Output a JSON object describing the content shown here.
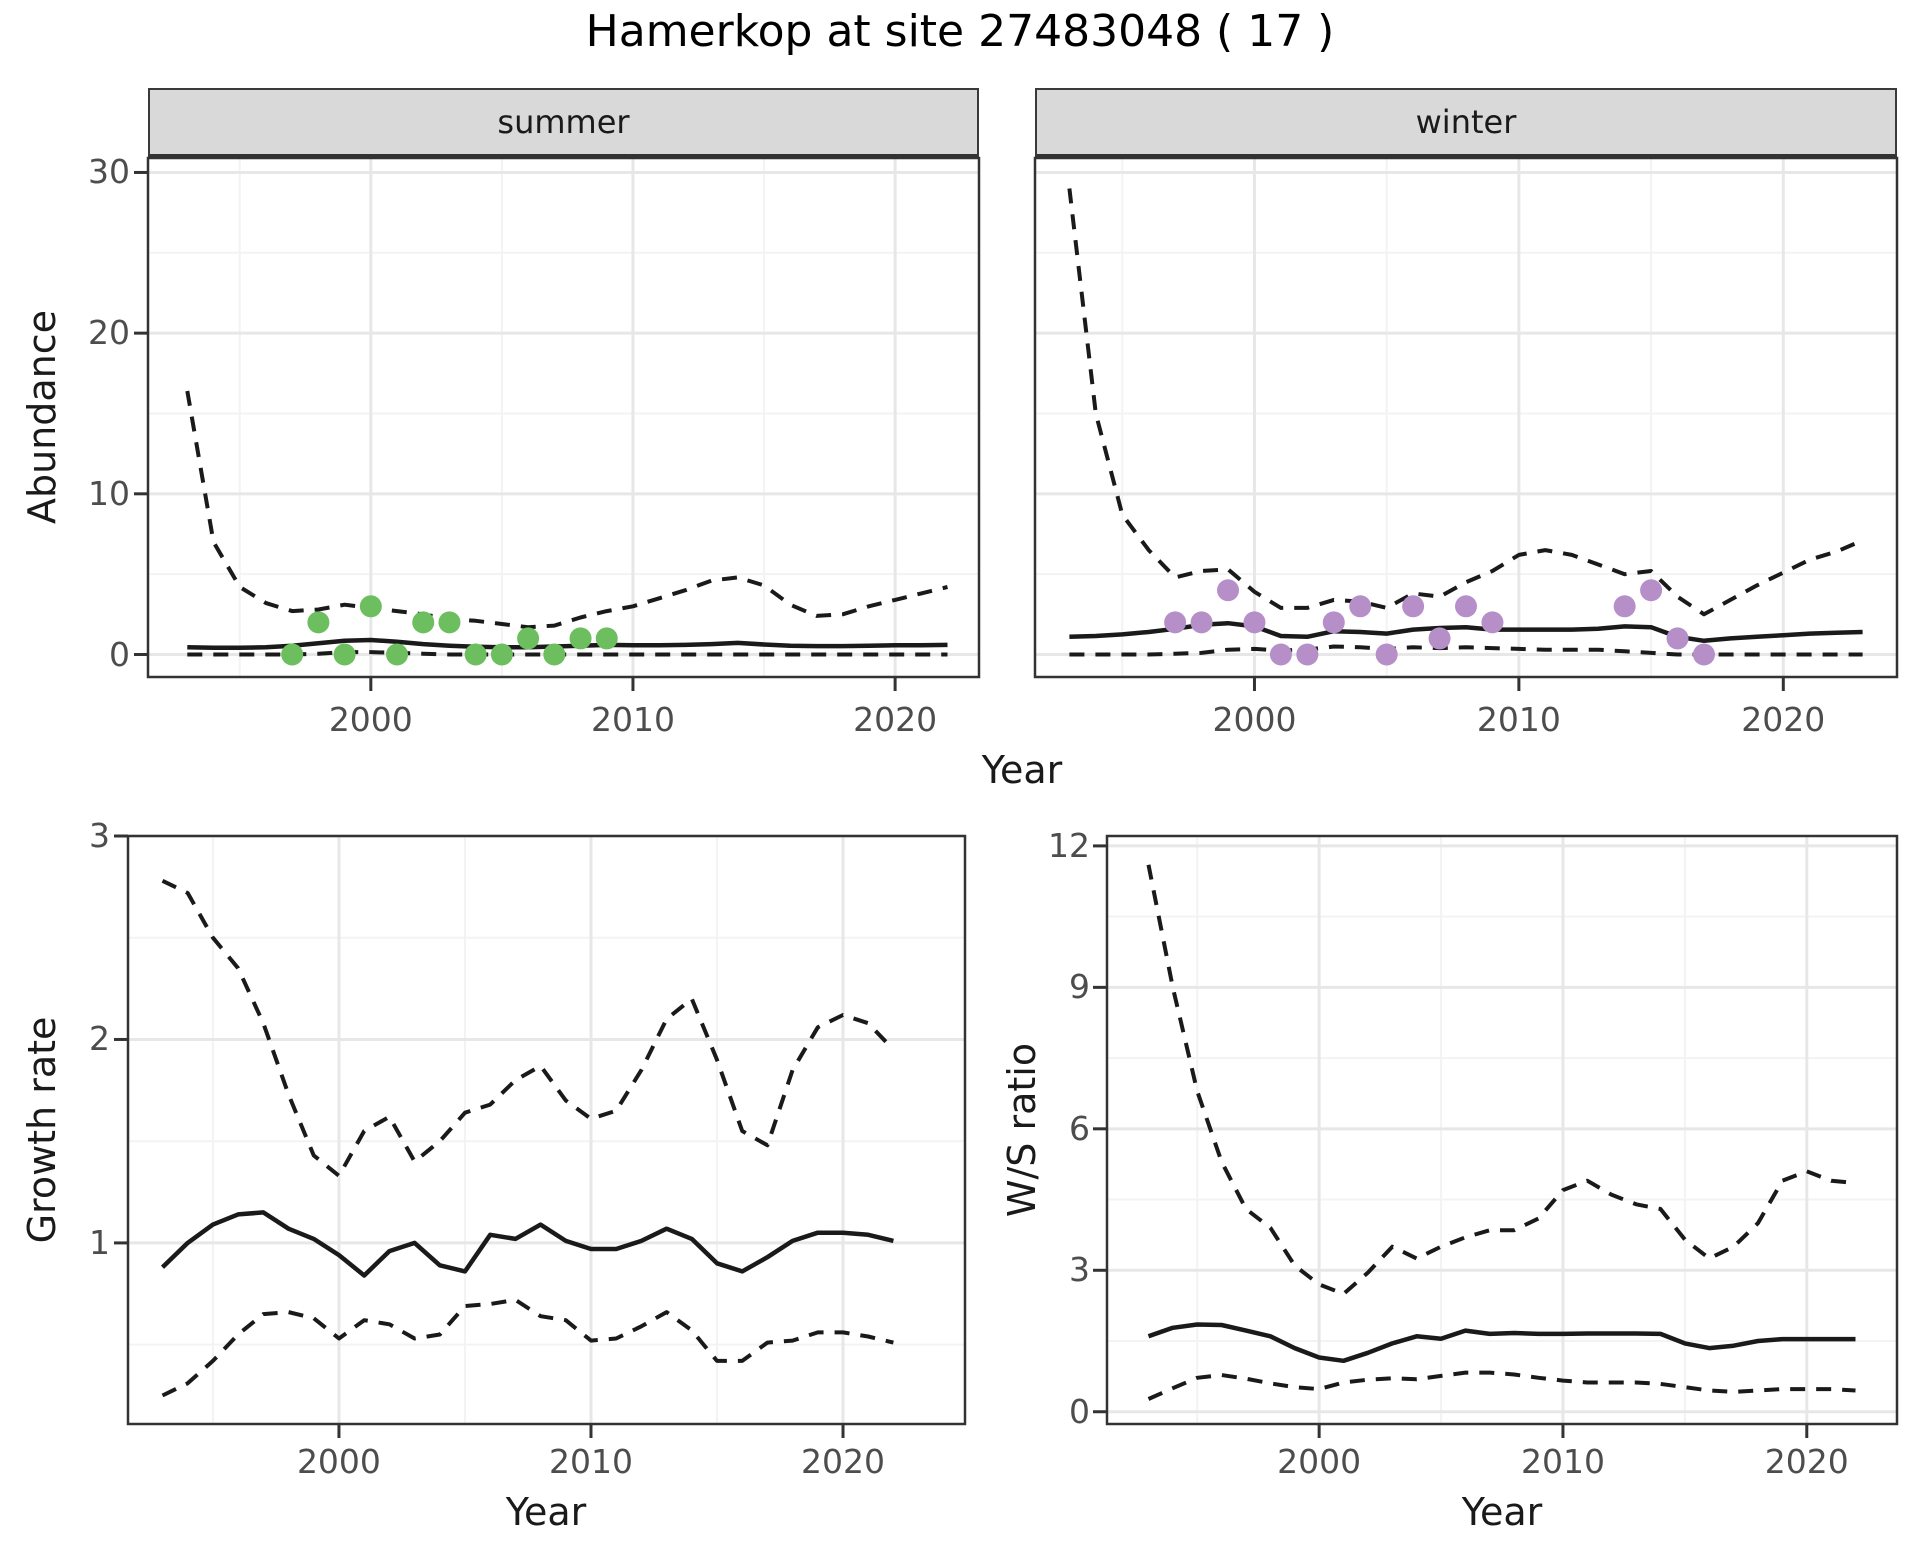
{
  "title": "Hamerkop at site 27483048 ( 17 )",
  "colors": {
    "line": "#1a1a1a",
    "panel_border": "#333333",
    "grid_major": "#e7e7e7",
    "grid_minor": "#f3f3f3",
    "strip_bg": "#d9d9d9",
    "tick_text": "#4d4d4d",
    "summer_points": "#6cbe5e",
    "winter_points": "#b68ec8"
  },
  "chart_data": [
    {
      "id": "abundance-summer",
      "type": "line",
      "facet": "summer",
      "ylabel": "Abundance",
      "xlabel": "Year",
      "xlim": [
        1991.5,
        2023.2
      ],
      "ylim": [
        -1.4,
        30.9
      ],
      "xticks": [
        2000,
        2010,
        2020
      ],
      "xticks_minor": [
        1995,
        2005,
        2015
      ],
      "yticks": [
        0,
        10,
        20,
        30
      ],
      "yticks_minor": [
        5,
        15,
        25
      ],
      "grid": true,
      "legend": "none",
      "series": [
        {
          "name": "upper_ci",
          "style": "dashed",
          "x": [
            1993,
            1994,
            1995,
            1996,
            1997,
            1998,
            1999,
            2000,
            2001,
            2002,
            2003,
            2004,
            2005,
            2006,
            2007,
            2008,
            2009,
            2010,
            2011,
            2012,
            2013,
            2014,
            2015,
            2016,
            2017,
            2018,
            2019,
            2020,
            2021,
            2022
          ],
          "y": [
            16.4,
            7.0,
            4.2,
            3.2,
            2.7,
            2.8,
            3.1,
            2.9,
            2.7,
            2.5,
            2.2,
            2.1,
            1.9,
            1.7,
            1.8,
            2.3,
            2.7,
            3.0,
            3.5,
            4.0,
            4.6,
            4.8,
            4.3,
            3.1,
            2.4,
            2.5,
            3.0,
            3.4,
            3.8,
            4.2
          ]
        },
        {
          "name": "median",
          "style": "solid",
          "x": [
            1993,
            1994,
            1995,
            1996,
            1997,
            1998,
            1999,
            2000,
            2001,
            2002,
            2003,
            2004,
            2005,
            2006,
            2007,
            2008,
            2009,
            2010,
            2011,
            2012,
            2013,
            2014,
            2015,
            2016,
            2017,
            2018,
            2019,
            2020,
            2021,
            2022
          ],
          "y": [
            0.45,
            0.42,
            0.42,
            0.45,
            0.55,
            0.7,
            0.85,
            0.9,
            0.8,
            0.65,
            0.55,
            0.48,
            0.45,
            0.45,
            0.5,
            0.55,
            0.6,
            0.58,
            0.58,
            0.6,
            0.65,
            0.72,
            0.62,
            0.55,
            0.52,
            0.52,
            0.55,
            0.57,
            0.58,
            0.6
          ]
        },
        {
          "name": "lower_ci",
          "style": "dashed",
          "x": [
            1993,
            1994,
            1995,
            1996,
            1997,
            1998,
            1999,
            2000,
            2001,
            2002,
            2003,
            2004,
            2005,
            2006,
            2007,
            2008,
            2009,
            2010,
            2011,
            2012,
            2013,
            2014,
            2015,
            2016,
            2017,
            2018,
            2019,
            2020,
            2021,
            2022
          ],
          "y": [
            0,
            0,
            0,
            0,
            0,
            0.05,
            0.15,
            0.15,
            0.1,
            0.05,
            0,
            0,
            0,
            0,
            0,
            0,
            0,
            0,
            0,
            0,
            0,
            0,
            0,
            0,
            0,
            0,
            0,
            0,
            0,
            0
          ]
        },
        {
          "name": "observed",
          "style": "points",
          "color": "#6cbe5e",
          "x": [
            1997,
            1998,
            1999,
            2000,
            2001,
            2002,
            2003,
            2004,
            2005,
            2006,
            2007,
            2008,
            2009
          ],
          "y": [
            0,
            2,
            0,
            3,
            0,
            2,
            2,
            0,
            0,
            1,
            0,
            1,
            1
          ]
        }
      ]
    },
    {
      "id": "abundance-winter",
      "type": "line",
      "facet": "winter",
      "ylabel": "Abundance",
      "xlabel": "Year",
      "xlim": [
        1991.7,
        2024.3
      ],
      "ylim": [
        -1.4,
        30.9
      ],
      "xticks": [
        2000,
        2010,
        2020
      ],
      "xticks_minor": [
        1995,
        2005,
        2015
      ],
      "yticks": [
        0,
        10,
        20,
        30
      ],
      "yticks_minor": [
        5,
        15,
        25
      ],
      "grid": true,
      "legend": "none",
      "series": [
        {
          "name": "upper_ci",
          "style": "dashed",
          "x": [
            1993,
            1994,
            1995,
            1996,
            1997,
            1998,
            1999,
            2000,
            2001,
            2002,
            2003,
            2004,
            2005,
            2006,
            2007,
            2008,
            2009,
            2010,
            2011,
            2012,
            2013,
            2014,
            2015,
            2016,
            2017,
            2018,
            2019,
            2020,
            2021,
            2022,
            2023
          ],
          "y": [
            29.0,
            15.0,
            8.7,
            6.5,
            4.8,
            5.2,
            5.3,
            3.9,
            2.9,
            2.9,
            3.4,
            3.3,
            2.9,
            3.8,
            3.6,
            4.5,
            5.2,
            6.2,
            6.5,
            6.2,
            5.6,
            5.0,
            5.2,
            3.6,
            2.5,
            3.4,
            4.3,
            5.1,
            5.9,
            6.4,
            7.1
          ]
        },
        {
          "name": "median",
          "style": "solid",
          "x": [
            1993,
            1994,
            1995,
            1996,
            1997,
            1998,
            1999,
            2000,
            2001,
            2002,
            2003,
            2004,
            2005,
            2006,
            2007,
            2008,
            2009,
            2010,
            2011,
            2012,
            2013,
            2014,
            2015,
            2016,
            2017,
            2018,
            2019,
            2020,
            2021,
            2022,
            2023
          ],
          "y": [
            1.1,
            1.15,
            1.25,
            1.4,
            1.6,
            1.85,
            1.95,
            1.75,
            1.15,
            1.1,
            1.45,
            1.4,
            1.3,
            1.55,
            1.65,
            1.7,
            1.55,
            1.55,
            1.55,
            1.55,
            1.6,
            1.75,
            1.7,
            1.1,
            0.85,
            1.0,
            1.1,
            1.2,
            1.3,
            1.35,
            1.4
          ]
        },
        {
          "name": "lower_ci",
          "style": "dashed",
          "x": [
            1993,
            1994,
            1995,
            1996,
            1997,
            1998,
            1999,
            2000,
            2001,
            2002,
            2003,
            2004,
            2005,
            2006,
            2007,
            2008,
            2009,
            2010,
            2011,
            2012,
            2013,
            2014,
            2015,
            2016,
            2017,
            2018,
            2019,
            2020,
            2021,
            2022,
            2023
          ],
          "y": [
            0,
            0,
            0,
            0,
            0.05,
            0.1,
            0.3,
            0.35,
            0.25,
            0.3,
            0.5,
            0.45,
            0.35,
            0.45,
            0.4,
            0.45,
            0.4,
            0.35,
            0.3,
            0.3,
            0.3,
            0.2,
            0.1,
            0,
            0,
            0,
            0,
            0,
            0,
            0,
            0
          ]
        },
        {
          "name": "observed",
          "style": "points",
          "color": "#b68ec8",
          "x": [
            1997,
            1998,
            1999,
            2000,
            2001,
            2002,
            2003,
            2004,
            2005,
            2006,
            2007,
            2008,
            2009,
            2014,
            2015,
            2016,
            2017
          ],
          "y": [
            2,
            2,
            4,
            2,
            0,
            0,
            2,
            3,
            0,
            3,
            1,
            3,
            2,
            3,
            4,
            1,
            0
          ]
        }
      ]
    },
    {
      "id": "growth-rate",
      "type": "line",
      "facet": "",
      "ylabel": "Growth rate",
      "xlabel": "Year",
      "xlim": [
        1991.63,
        2024.84
      ],
      "ylim": [
        0.11,
        3.0
      ],
      "xticks": [
        2000,
        2010,
        2020
      ],
      "xticks_minor": [
        1995,
        2005,
        2015
      ],
      "yticks": [
        1,
        2,
        3
      ],
      "yticks_minor": [
        0.5,
        1.5,
        2.5
      ],
      "grid": true,
      "legend": "none",
      "series": [
        {
          "name": "upper_ci",
          "style": "dashed",
          "x": [
            1993,
            1994,
            1995,
            1996,
            1997,
            1998,
            1999,
            2000,
            2001,
            2002,
            2003,
            2004,
            2005,
            2006,
            2007,
            2008,
            2009,
            2010,
            2011,
            2012,
            2013,
            2014,
            2015,
            2016,
            2017,
            2018,
            2019,
            2020,
            2021,
            2022
          ],
          "y": [
            2.78,
            2.72,
            2.5,
            2.35,
            2.08,
            1.73,
            1.43,
            1.33,
            1.55,
            1.62,
            1.4,
            1.5,
            1.64,
            1.68,
            1.8,
            1.87,
            1.7,
            1.61,
            1.65,
            1.85,
            2.1,
            2.2,
            1.9,
            1.55,
            1.48,
            1.85,
            2.06,
            2.12,
            2.08,
            1.95
          ]
        },
        {
          "name": "median",
          "style": "solid",
          "x": [
            1993,
            1994,
            1995,
            1996,
            1997,
            1998,
            1999,
            2000,
            2001,
            2002,
            2003,
            2004,
            2005,
            2006,
            2007,
            2008,
            2009,
            2010,
            2011,
            2012,
            2013,
            2014,
            2015,
            2016,
            2017,
            2018,
            2019,
            2020,
            2021,
            2022
          ],
          "y": [
            0.88,
            1.0,
            1.09,
            1.14,
            1.15,
            1.07,
            1.02,
            0.94,
            0.84,
            0.96,
            1.0,
            0.89,
            0.86,
            1.04,
            1.02,
            1.09,
            1.01,
            0.97,
            0.97,
            1.01,
            1.07,
            1.02,
            0.9,
            0.86,
            0.93,
            1.01,
            1.05,
            1.05,
            1.04,
            1.01
          ]
        },
        {
          "name": "lower_ci",
          "style": "dashed",
          "x": [
            1993,
            1994,
            1995,
            1996,
            1997,
            1998,
            1999,
            2000,
            2001,
            2002,
            2003,
            2004,
            2005,
            2006,
            2007,
            2008,
            2009,
            2010,
            2011,
            2012,
            2013,
            2014,
            2015,
            2016,
            2017,
            2018,
            2019,
            2020,
            2021,
            2022
          ],
          "y": [
            0.25,
            0.31,
            0.42,
            0.55,
            0.65,
            0.66,
            0.63,
            0.53,
            0.62,
            0.6,
            0.53,
            0.55,
            0.69,
            0.7,
            0.72,
            0.64,
            0.62,
            0.52,
            0.53,
            0.59,
            0.66,
            0.57,
            0.42,
            0.42,
            0.51,
            0.52,
            0.56,
            0.56,
            0.54,
            0.51
          ]
        }
      ]
    },
    {
      "id": "ws-ratio",
      "type": "line",
      "facet": "",
      "ylabel": "W/S ratio",
      "xlabel": "Year",
      "xlim": [
        1991.3,
        2023.7
      ],
      "ylim": [
        -0.26,
        12.21
      ],
      "xticks": [
        2000,
        2010,
        2020
      ],
      "xticks_minor": [
        1995,
        2005,
        2015
      ],
      "yticks": [
        0,
        3,
        6,
        9,
        12
      ],
      "yticks_minor": [
        1.5,
        4.5,
        7.5,
        10.5
      ],
      "grid": true,
      "legend": "none",
      "series": [
        {
          "name": "upper_ci",
          "style": "dashed",
          "x": [
            1993,
            1994,
            1995,
            1996,
            1997,
            1998,
            1999,
            2000,
            2001,
            2002,
            2003,
            2004,
            2005,
            2006,
            2007,
            2008,
            2009,
            2010,
            2011,
            2012,
            2013,
            2014,
            2015,
            2016,
            2017,
            2018,
            2019,
            2020,
            2021,
            2022
          ],
          "y": [
            11.6,
            9.0,
            6.8,
            5.3,
            4.3,
            3.9,
            3.1,
            2.7,
            2.5,
            2.95,
            3.5,
            3.25,
            3.5,
            3.7,
            3.85,
            3.85,
            4.1,
            4.7,
            4.9,
            4.6,
            4.4,
            4.3,
            3.65,
            3.25,
            3.5,
            4.0,
            4.9,
            5.1,
            4.9,
            4.85
          ]
        },
        {
          "name": "median",
          "style": "solid",
          "x": [
            1993,
            1994,
            1995,
            1996,
            1997,
            1998,
            1999,
            2000,
            2001,
            2002,
            2003,
            2004,
            2005,
            2006,
            2007,
            2008,
            2009,
            2010,
            2011,
            2012,
            2013,
            2014,
            2015,
            2016,
            2017,
            2018,
            2019,
            2020,
            2021,
            2022
          ],
          "y": [
            1.6,
            1.78,
            1.85,
            1.84,
            1.72,
            1.6,
            1.35,
            1.15,
            1.08,
            1.25,
            1.45,
            1.6,
            1.55,
            1.72,
            1.65,
            1.67,
            1.65,
            1.65,
            1.66,
            1.66,
            1.66,
            1.65,
            1.45,
            1.35,
            1.4,
            1.5,
            1.54,
            1.54,
            1.54,
            1.54
          ]
        },
        {
          "name": "lower_ci",
          "style": "dashed",
          "x": [
            1993,
            1994,
            1995,
            1996,
            1997,
            1998,
            1999,
            2000,
            2001,
            2002,
            2003,
            2004,
            2005,
            2006,
            2007,
            2008,
            2009,
            2010,
            2011,
            2012,
            2013,
            2014,
            2015,
            2016,
            2017,
            2018,
            2019,
            2020,
            2021,
            2022
          ],
          "y": [
            0.27,
            0.5,
            0.72,
            0.78,
            0.7,
            0.6,
            0.52,
            0.48,
            0.62,
            0.68,
            0.71,
            0.69,
            0.76,
            0.83,
            0.83,
            0.79,
            0.72,
            0.66,
            0.62,
            0.62,
            0.62,
            0.59,
            0.52,
            0.45,
            0.42,
            0.45,
            0.48,
            0.48,
            0.48,
            0.45
          ]
        }
      ]
    }
  ]
}
